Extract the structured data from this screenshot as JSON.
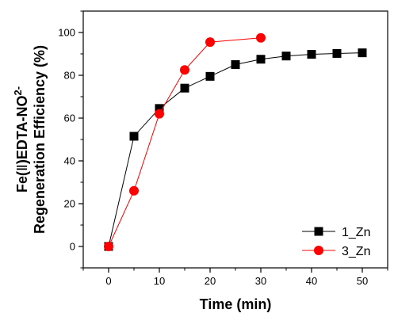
{
  "chart_data": {
    "type": "line",
    "xlabel": "Time (min)",
    "ylabel_line1_prefix": "Fe(",
    "ylabel_line1_roman": "Ⅱ",
    "ylabel_line1_suffix": ")EDTA-NO",
    "ylabel_line1_sup": "2-",
    "ylabel_line2": "Regeneration Efficiency (%)",
    "xlim": [
      -5,
      55
    ],
    "ylim": [
      -10,
      110
    ],
    "xticks": [
      0,
      10,
      20,
      30,
      40,
      50
    ],
    "yticks": [
      0,
      20,
      40,
      60,
      80,
      100
    ],
    "grid": false,
    "legend_position": "bottom-right",
    "series": [
      {
        "name": "1_Zn",
        "color": "#000000",
        "marker": "square",
        "x": [
          0,
          5,
          10,
          15,
          20,
          25,
          30,
          35,
          40,
          45,
          50
        ],
        "y": [
          0,
          51.5,
          64.5,
          74,
          79.5,
          85,
          87.5,
          89,
          89.8,
          90.2,
          90.5
        ]
      },
      {
        "name": "3_Zn",
        "color": "#ff0000",
        "marker": "circle",
        "x": [
          0,
          5,
          10,
          15,
          20,
          30
        ],
        "y": [
          0,
          26,
          62,
          82.5,
          95.5,
          97.5
        ]
      }
    ]
  }
}
